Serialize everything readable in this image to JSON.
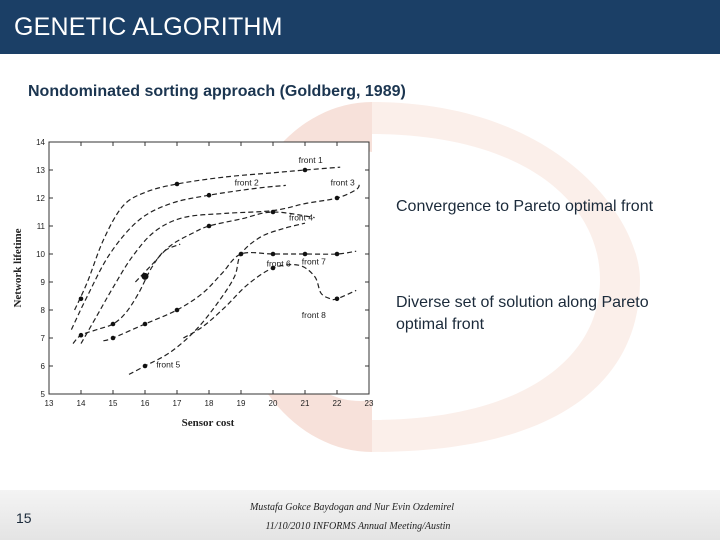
{
  "header": {
    "title": "GENETIC ALGORITHM"
  },
  "slide": {
    "subtitle": "Nondominated sorting approach (Goldberg, 1989)",
    "notes": [
      "Convergence to Pareto optimal front",
      "Diverse set of solution along Pareto optimal front"
    ]
  },
  "footer": {
    "page_number": "15",
    "authors": "Mustafa Gokce Baydogan and Nur Evin Ozdemirel",
    "event": "11/10/2010 INFORMS Annual Meeting/Austin"
  },
  "colors": {
    "header_bg": "#1b3f66",
    "watermark": "#f7e1da",
    "curve": "#222222"
  },
  "chart_data": {
    "type": "scatter",
    "title": "",
    "xlabel": "Sensor cost",
    "ylabel": "Network lifetime",
    "xlim": [
      13,
      23
    ],
    "ylim": [
      5,
      14
    ],
    "xticks": [
      13,
      14,
      15,
      16,
      17,
      18,
      19,
      20,
      21,
      22,
      23
    ],
    "yticks": [
      5,
      6,
      7,
      8,
      9,
      10,
      11,
      12,
      13,
      14
    ],
    "grid": false,
    "legend": "none",
    "series": [
      {
        "name": "front 1",
        "points": [
          [
            14,
            8.4
          ],
          [
            16,
            9.2
          ],
          [
            17,
            12.5
          ],
          [
            21,
            13
          ]
        ],
        "curve": [
          [
            13.8,
            8.0
          ],
          [
            14.2,
            9.0
          ],
          [
            14.7,
            10.5
          ],
          [
            15.3,
            11.7
          ],
          [
            16.0,
            12.2
          ],
          [
            17,
            12.5
          ],
          [
            18.5,
            12.75
          ],
          [
            20,
            12.9
          ],
          [
            21,
            13
          ],
          [
            22.1,
            13.1
          ]
        ],
        "label_at": [
          20.8,
          13.25
        ]
      },
      {
        "name": "front 2",
        "points": [
          [
            18,
            12.1
          ]
        ],
        "curve": [
          [
            13.7,
            7.3
          ],
          [
            14.2,
            8.5
          ],
          [
            14.9,
            10.0
          ],
          [
            15.8,
            11.2
          ],
          [
            16.8,
            11.8
          ],
          [
            18,
            12.1
          ],
          [
            19.5,
            12.35
          ],
          [
            20.4,
            12.45
          ]
        ],
        "label_at": [
          18.8,
          12.45
        ]
      },
      {
        "name": "front 3",
        "points": [
          [
            22,
            12
          ]
        ],
        "curve": [
          [
            14.0,
            6.8
          ],
          [
            14.5,
            7.8
          ],
          [
            15.0,
            8.8
          ],
          [
            15.6,
            9.9
          ],
          [
            16.3,
            10.8
          ],
          [
            17.2,
            11.3
          ],
          [
            18.5,
            11.45
          ],
          [
            20,
            11.55
          ],
          [
            21,
            11.8
          ],
          [
            22,
            12
          ],
          [
            22.6,
            12.3
          ],
          [
            22.7,
            12.5
          ]
        ],
        "label_at": [
          21.8,
          12.45
        ]
      },
      {
        "name": "front 4",
        "points": [
          [
            16,
            9.2
          ],
          [
            18,
            11
          ],
          [
            20,
            11.5
          ]
        ],
        "curve": [
          [
            15.7,
            9.0
          ],
          [
            16.2,
            9.6
          ],
          [
            16.8,
            10.3
          ],
          [
            17.5,
            10.75
          ],
          [
            18,
            11
          ],
          [
            19,
            11.25
          ],
          [
            20,
            11.5
          ],
          [
            21.3,
            11.3
          ]
        ],
        "label_at": [
          20.5,
          11.2
        ]
      },
      {
        "name": "front 5",
        "points": [
          [
            16,
            6
          ]
        ],
        "curve": [
          [
            15.5,
            5.7
          ],
          [
            16,
            6
          ],
          [
            16.8,
            6.5
          ],
          [
            17.6,
            7.3
          ],
          [
            18.3,
            8.3
          ],
          [
            18.8,
            9.2
          ],
          [
            19,
            10
          ],
          [
            19.6,
            10.6
          ],
          [
            20.3,
            10.9
          ],
          [
            21,
            11.1
          ]
        ],
        "label_at": [
          16.35,
          5.95
        ]
      },
      {
        "name": "front 6",
        "points": [
          [
            14,
            7.1
          ],
          [
            15,
            7.5
          ]
        ],
        "curve": [
          [
            13.75,
            6.8
          ],
          [
            14,
            7.1
          ],
          [
            14.5,
            7.3
          ],
          [
            15,
            7.5
          ],
          [
            15.4,
            7.9
          ],
          [
            15.8,
            8.6
          ],
          [
            16.2,
            9.5
          ],
          [
            16.6,
            10.1
          ],
          [
            17.1,
            10.35
          ]
        ],
        "label_at": [
          19.8,
          9.55
        ]
      },
      {
        "name": "front 7",
        "points": [
          [
            15,
            7
          ],
          [
            16,
            7.5
          ],
          [
            17,
            8
          ],
          [
            19,
            10
          ],
          [
            20,
            10
          ],
          [
            21,
            10
          ],
          [
            22,
            10
          ]
        ],
        "curve": [
          [
            14.7,
            6.9
          ],
          [
            15,
            7
          ],
          [
            16,
            7.5
          ],
          [
            17,
            8
          ],
          [
            17.8,
            8.6
          ],
          [
            18.4,
            9.3
          ],
          [
            19,
            10
          ],
          [
            20,
            10
          ],
          [
            21,
            10
          ],
          [
            22,
            10
          ],
          [
            22.6,
            10.1
          ]
        ],
        "label_at": [
          20.9,
          9.62
        ]
      },
      {
        "name": "front 8",
        "points": [
          [
            20,
            9.5
          ],
          [
            22,
            8.4
          ]
        ],
        "curve": [
          [
            17.2,
            7.0
          ],
          [
            17.8,
            7.4
          ],
          [
            18.5,
            8.1
          ],
          [
            19.2,
            8.9
          ],
          [
            20,
            9.5
          ],
          [
            20.8,
            9.6
          ],
          [
            21.3,
            9.2
          ],
          [
            21.5,
            8.6
          ],
          [
            21.8,
            8.4
          ],
          [
            22,
            8.4
          ],
          [
            22.6,
            8.7
          ]
        ],
        "label_at": [
          20.9,
          7.72
        ]
      }
    ]
  }
}
